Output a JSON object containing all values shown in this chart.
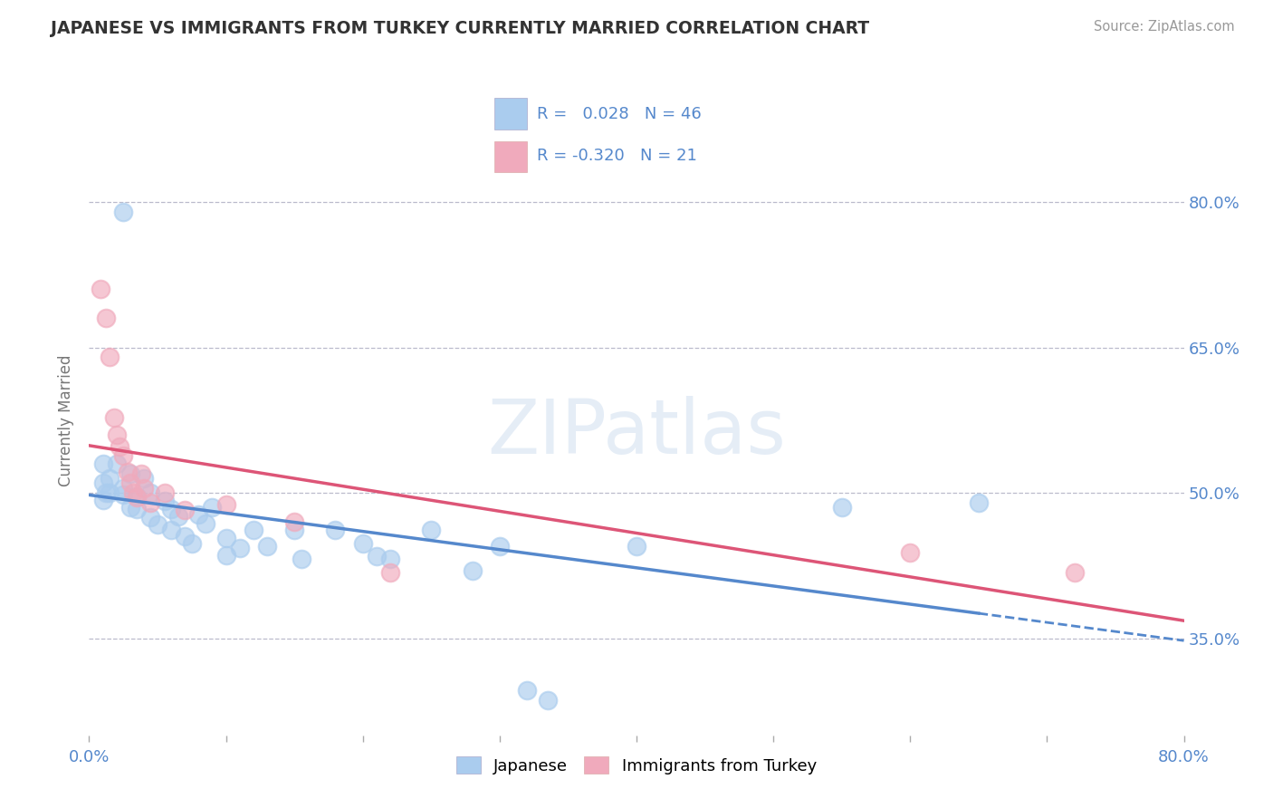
{
  "title": "JAPANESE VS IMMIGRANTS FROM TURKEY CURRENTLY MARRIED CORRELATION CHART",
  "source_text": "Source: ZipAtlas.com",
  "ylabel": "Currently Married",
  "watermark": "ZIPatlas",
  "xlim": [
    0.0,
    0.8
  ],
  "ylim": [
    0.25,
    0.9
  ],
  "ytick_positions": [
    0.35,
    0.5,
    0.65,
    0.8
  ],
  "ytick_labels": [
    "35.0%",
    "50.0%",
    "65.0%",
    "80.0%"
  ],
  "legend_r_japanese": " 0.028",
  "legend_n_japanese": "46",
  "legend_r_turkey": "-0.320",
  "legend_n_turkey": "21",
  "japanese_color": "#aaccee",
  "turkey_color": "#f0aabc",
  "japanese_line_color": "#5588cc",
  "turkey_line_color": "#dd5577",
  "grid_color": "#bbbbcc",
  "background_color": "#ffffff",
  "title_color": "#333333",
  "axis_label_color": "#777777",
  "tick_label_color": "#5588cc",
  "japanese_scatter": [
    [
      0.025,
      0.79
    ],
    [
      0.01,
      0.493
    ],
    [
      0.01,
      0.51
    ],
    [
      0.01,
      0.53
    ],
    [
      0.012,
      0.5
    ],
    [
      0.015,
      0.515
    ],
    [
      0.015,
      0.5
    ],
    [
      0.02,
      0.53
    ],
    [
      0.025,
      0.505
    ],
    [
      0.025,
      0.498
    ],
    [
      0.03,
      0.485
    ],
    [
      0.03,
      0.52
    ],
    [
      0.035,
      0.496
    ],
    [
      0.035,
      0.483
    ],
    [
      0.04,
      0.515
    ],
    [
      0.045,
      0.5
    ],
    [
      0.045,
      0.475
    ],
    [
      0.05,
      0.467
    ],
    [
      0.055,
      0.492
    ],
    [
      0.06,
      0.483
    ],
    [
      0.06,
      0.462
    ],
    [
      0.065,
      0.476
    ],
    [
      0.07,
      0.455
    ],
    [
      0.075,
      0.448
    ],
    [
      0.08,
      0.478
    ],
    [
      0.085,
      0.468
    ],
    [
      0.09,
      0.485
    ],
    [
      0.1,
      0.436
    ],
    [
      0.1,
      0.453
    ],
    [
      0.11,
      0.443
    ],
    [
      0.12,
      0.462
    ],
    [
      0.13,
      0.445
    ],
    [
      0.15,
      0.462
    ],
    [
      0.155,
      0.432
    ],
    [
      0.18,
      0.462
    ],
    [
      0.2,
      0.448
    ],
    [
      0.21,
      0.435
    ],
    [
      0.22,
      0.432
    ],
    [
      0.25,
      0.462
    ],
    [
      0.28,
      0.42
    ],
    [
      0.3,
      0.445
    ],
    [
      0.32,
      0.296
    ],
    [
      0.335,
      0.286
    ],
    [
      0.4,
      0.445
    ],
    [
      0.55,
      0.485
    ],
    [
      0.65,
      0.49
    ]
  ],
  "turkey_scatter": [
    [
      0.008,
      0.71
    ],
    [
      0.012,
      0.68
    ],
    [
      0.015,
      0.64
    ],
    [
      0.018,
      0.578
    ],
    [
      0.02,
      0.56
    ],
    [
      0.022,
      0.548
    ],
    [
      0.025,
      0.538
    ],
    [
      0.028,
      0.522
    ],
    [
      0.03,
      0.51
    ],
    [
      0.032,
      0.5
    ],
    [
      0.035,
      0.495
    ],
    [
      0.038,
      0.52
    ],
    [
      0.04,
      0.505
    ],
    [
      0.045,
      0.49
    ],
    [
      0.055,
      0.5
    ],
    [
      0.07,
      0.482
    ],
    [
      0.1,
      0.488
    ],
    [
      0.15,
      0.47
    ],
    [
      0.22,
      0.418
    ],
    [
      0.6,
      0.438
    ],
    [
      0.72,
      0.418
    ]
  ]
}
